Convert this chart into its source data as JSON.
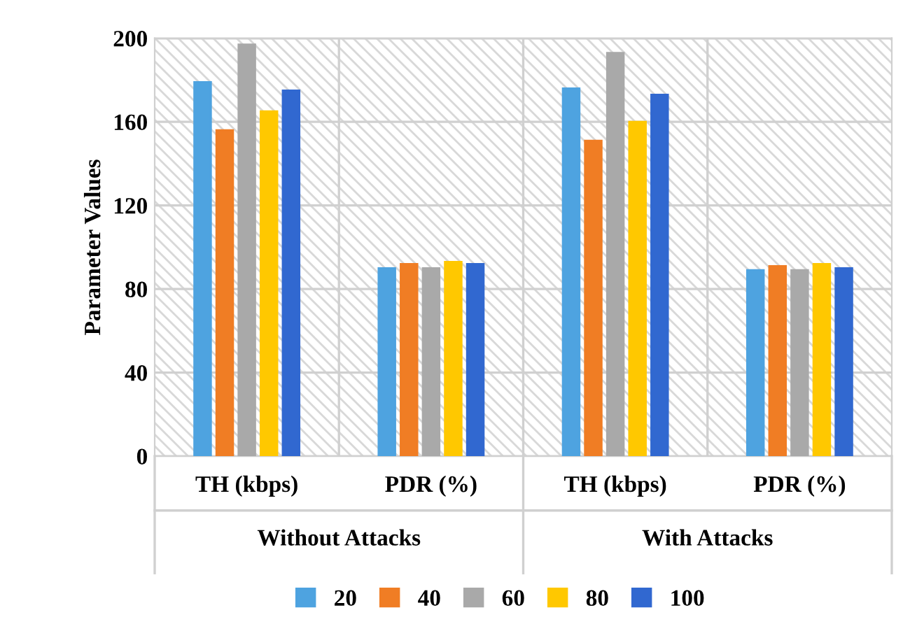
{
  "chart_data": {
    "type": "bar",
    "ylabel": "Parameter Values",
    "categories": [
      "TH (kbps)",
      "PDR (%)",
      "TH (kbps)",
      "PDR (%)"
    ],
    "annotations": [
      "Without Attacks",
      "With Attacks"
    ],
    "series": [
      {
        "name": "20",
        "color": "#4ea3e0",
        "values": [
          179,
          90,
          176,
          89
        ]
      },
      {
        "name": "40",
        "color": "#f07d24",
        "values": [
          156,
          92,
          151,
          91
        ]
      },
      {
        "name": "60",
        "color": "#a9a9a9",
        "values": [
          197,
          90,
          193,
          89
        ]
      },
      {
        "name": "80",
        "color": "#ffc800",
        "values": [
          165,
          93,
          160,
          92
        ]
      },
      {
        "name": "100",
        "color": "#3168d0",
        "values": [
          175,
          92,
          173,
          90
        ]
      }
    ],
    "ylim": [
      0,
      200
    ],
    "yticks": [
      0,
      40,
      80,
      120,
      160,
      200
    ],
    "grid": "y",
    "legend": "bottom"
  }
}
